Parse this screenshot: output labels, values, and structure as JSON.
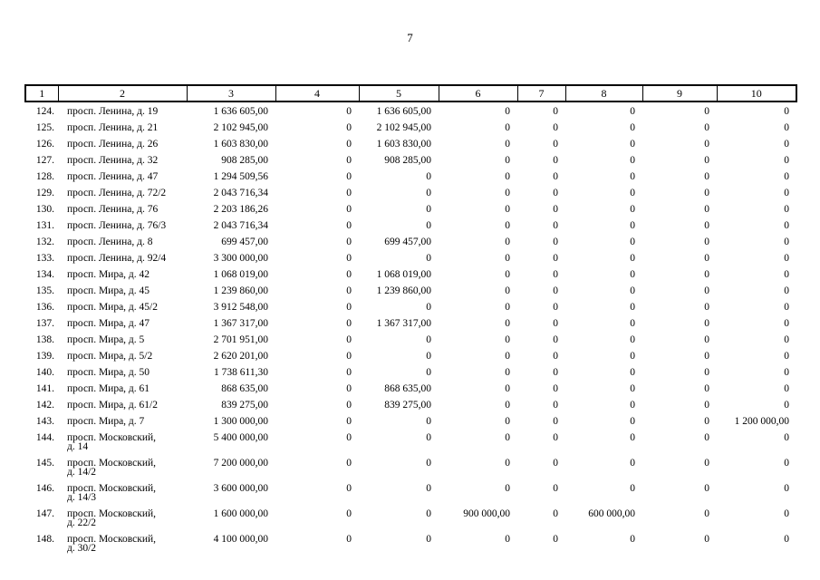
{
  "page_number": "7",
  "table": {
    "column_headers": [
      "1",
      "2",
      "3",
      "4",
      "5",
      "6",
      "7",
      "8",
      "9",
      "10"
    ],
    "rows": [
      [
        "124.",
        "просп. Ленина, д. 19",
        "1 636 605,00",
        "0",
        "1 636 605,00",
        "0",
        "0",
        "0",
        "0",
        "0"
      ],
      [
        "125.",
        "просп. Ленина, д. 21",
        "2 102 945,00",
        "0",
        "2 102 945,00",
        "0",
        "0",
        "0",
        "0",
        "0"
      ],
      [
        "126.",
        "просп. Ленина, д. 26",
        "1 603 830,00",
        "0",
        "1 603 830,00",
        "0",
        "0",
        "0",
        "0",
        "0"
      ],
      [
        "127.",
        "просп. Ленина, д. 32",
        "908 285,00",
        "0",
        "908 285,00",
        "0",
        "0",
        "0",
        "0",
        "0"
      ],
      [
        "128.",
        "просп. Ленина, д. 47",
        "1 294 509,56",
        "0",
        "0",
        "0",
        "0",
        "0",
        "0",
        "0"
      ],
      [
        "129.",
        "просп. Ленина, д. 72/2",
        "2 043 716,34",
        "0",
        "0",
        "0",
        "0",
        "0",
        "0",
        "0"
      ],
      [
        "130.",
        "просп. Ленина, д. 76",
        "2 203 186,26",
        "0",
        "0",
        "0",
        "0",
        "0",
        "0",
        "0"
      ],
      [
        "131.",
        "просп. Ленина, д. 76/3",
        "2 043 716,34",
        "0",
        "0",
        "0",
        "0",
        "0",
        "0",
        "0"
      ],
      [
        "132.",
        "просп. Ленина, д. 8",
        "699 457,00",
        "0",
        "699 457,00",
        "0",
        "0",
        "0",
        "0",
        "0"
      ],
      [
        "133.",
        "просп. Ленина, д. 92/4",
        "3 300 000,00",
        "0",
        "0",
        "0",
        "0",
        "0",
        "0",
        "0"
      ],
      [
        "134.",
        "просп. Мира, д. 42",
        "1 068 019,00",
        "0",
        "1 068 019,00",
        "0",
        "0",
        "0",
        "0",
        "0"
      ],
      [
        "135.",
        "просп. Мира, д. 45",
        "1 239 860,00",
        "0",
        "1 239 860,00",
        "0",
        "0",
        "0",
        "0",
        "0"
      ],
      [
        "136.",
        "просп. Мира, д. 45/2",
        "3 912 548,00",
        "0",
        "0",
        "0",
        "0",
        "0",
        "0",
        "0"
      ],
      [
        "137.",
        "просп. Мира, д. 47",
        "1 367 317,00",
        "0",
        "1 367 317,00",
        "0",
        "0",
        "0",
        "0",
        "0"
      ],
      [
        "138.",
        "просп. Мира, д. 5",
        "2 701 951,00",
        "0",
        "0",
        "0",
        "0",
        "0",
        "0",
        "0"
      ],
      [
        "139.",
        "просп. Мира, д. 5/2",
        "2 620 201,00",
        "0",
        "0",
        "0",
        "0",
        "0",
        "0",
        "0"
      ],
      [
        "140.",
        "просп. Мира, д. 50",
        "1 738 611,30",
        "0",
        "0",
        "0",
        "0",
        "0",
        "0",
        "0"
      ],
      [
        "141.",
        "просп. Мира, д. 61",
        "868 635,00",
        "0",
        "868 635,00",
        "0",
        "0",
        "0",
        "0",
        "0"
      ],
      [
        "142.",
        "просп. Мира, д. 61/2",
        "839 275,00",
        "0",
        "839 275,00",
        "0",
        "0",
        "0",
        "0",
        "0"
      ],
      [
        "143.",
        "просп. Мира, д. 7",
        "1 300 000,00",
        "0",
        "0",
        "0",
        "0",
        "0",
        "0",
        "1 200 000,00"
      ],
      [
        "144.",
        "просп. Московский,\nд. 14",
        "5 400 000,00",
        "0",
        "0",
        "0",
        "0",
        "0",
        "0",
        "0"
      ],
      [
        "145.",
        "просп. Московский,\nд. 14/2",
        "7 200 000,00",
        "0",
        "0",
        "0",
        "0",
        "0",
        "0",
        "0"
      ],
      [
        "146.",
        "просп. Московский,\nд. 14/3",
        "3 600 000,00",
        "0",
        "0",
        "0",
        "0",
        "0",
        "0",
        "0"
      ],
      [
        "147.",
        "просп. Московский,\nд. 22/2",
        "1 600 000,00",
        "0",
        "0",
        "900 000,00",
        "0",
        "600 000,00",
        "0",
        "0"
      ],
      [
        "148.",
        "просп. Московский,\nд. 30/2",
        "4 100 000,00",
        "0",
        "0",
        "0",
        "0",
        "0",
        "0",
        "0"
      ]
    ]
  }
}
